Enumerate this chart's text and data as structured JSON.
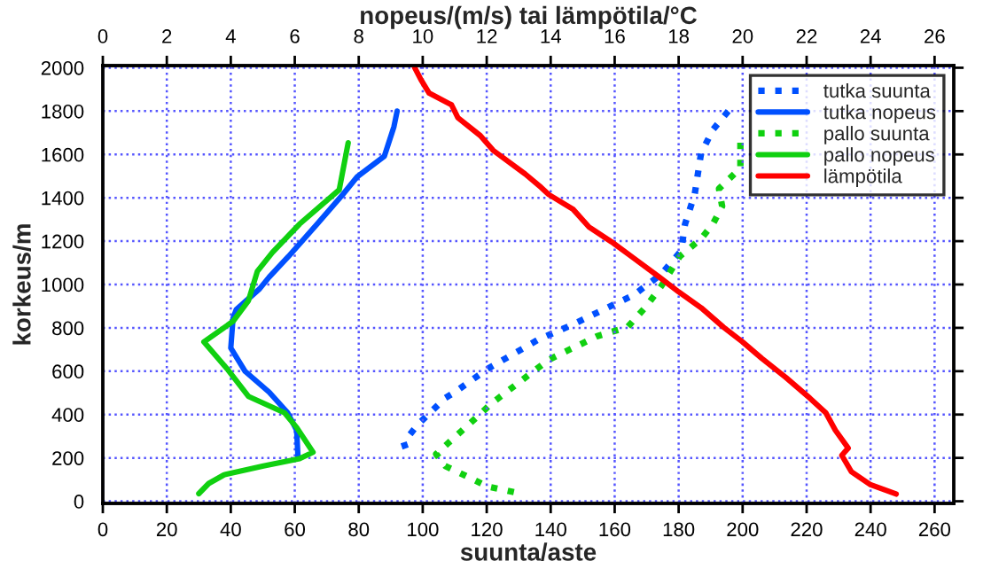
{
  "chart_data": {
    "type": "line",
    "xlabel": "suunta/aste",
    "x2label": "nopeus/(m/s) tai lämpötila/°C",
    "ylabel": "korkeus/m",
    "xlim": [
      0,
      266
    ],
    "xticks": [
      0,
      20,
      40,
      60,
      80,
      100,
      120,
      140,
      160,
      180,
      200,
      220,
      240,
      260
    ],
    "x2lim": [
      0,
      26.6
    ],
    "x2ticks": [
      0,
      2,
      4,
      6,
      8,
      10,
      12,
      14,
      16,
      18,
      20,
      22,
      24,
      26
    ],
    "ylim": [
      -10,
      2010
    ],
    "yticks": [
      0,
      200,
      400,
      600,
      800,
      1000,
      1200,
      1400,
      1600,
      1800,
      2000
    ],
    "grid": true,
    "legend": "top right",
    "series": [
      {
        "name": "tutka suunta",
        "color": "#0050ff",
        "line_style": "dotted",
        "x": [
          195.5,
          190.7,
          187,
          185,
          182,
          180.8,
          174.6,
          166,
          158.4,
          147,
          136.4,
          120.4,
          110,
          107,
          98.5,
          94,
          95.6
        ],
        "values": [
          1800,
          1714,
          1605,
          1415,
          1279,
          1156,
          1048,
          952,
          898,
          816,
          748,
          612,
          503,
          476,
          354,
          272,
          204
        ]
      },
      {
        "name": "tutka nopeus",
        "color": "#0050ff",
        "line_style": "solid",
        "axis": "x2",
        "x": [
          9.2,
          9.1,
          8.8,
          7.95,
          7.5,
          6.7,
          5.8,
          5.2,
          4.9,
          4.17,
          4.07,
          4.0,
          4.45,
          5.2,
          5.78,
          6.06,
          6.1
        ],
        "values": [
          1800,
          1728,
          1592,
          1497,
          1415,
          1279,
          1129,
          1034,
          980,
          884,
          844,
          707,
          599,
          503,
          408,
          327,
          204
        ]
      },
      {
        "name": "pallo suunta",
        "color": "#10d010",
        "line_style": "dotted",
        "x": [
          199.3,
          199.3,
          192.6,
          193.6,
          190.7,
          187,
          180.3,
          174.6,
          169.8,
          164,
          154.6,
          139.4,
          121.3,
          118.4,
          104.2,
          107,
          120.3,
          128.8
        ],
        "values": [
          1654,
          1537,
          1442,
          1361,
          1279,
          1211,
          1129,
          993,
          898,
          803,
          762,
          653,
          449,
          408,
          218,
          163,
          68,
          41
        ]
      },
      {
        "name": "pallo nopeus",
        "color": "#10d010",
        "line_style": "solid",
        "axis": "x2",
        "x": [
          7.67,
          7.39,
          6.15,
          5.3,
          4.83,
          4.55,
          4.07,
          3.16,
          3.88,
          4.55,
          5.68,
          6.06,
          6.57,
          6.15,
          5.02,
          3.79,
          3.31,
          3.0
        ],
        "values": [
          1654,
          1437,
          1279,
          1148,
          1061,
          925,
          830,
          735,
          612,
          484,
          408,
          340,
          226,
          196,
          163,
          122,
          82,
          35
        ]
      },
      {
        "name": "lämpötila",
        "color": "#ff0000",
        "line_style": "solid",
        "axis": "x2",
        "x": [
          9.75,
          9.94,
          10.2,
          10.9,
          11.1,
          11.8,
          12.2,
          13.2,
          13.7,
          13.94,
          14.7,
          15.2,
          15.9,
          16.6,
          17.4,
          18.0,
          18.7,
          19.4,
          20.0,
          20.6,
          21.35,
          22.1,
          22.6,
          22.9,
          23.3,
          23.1,
          23.4,
          24.0,
          24.8
        ],
        "values": [
          2000,
          1946,
          1883,
          1829,
          1769,
          1687,
          1619,
          1510,
          1448,
          1415,
          1347,
          1265,
          1197,
          1121,
          1034,
          966,
          893,
          803,
          735,
          659,
          571,
          476,
          408,
          327,
          245,
          212,
          136,
          76,
          33
        ]
      }
    ]
  }
}
